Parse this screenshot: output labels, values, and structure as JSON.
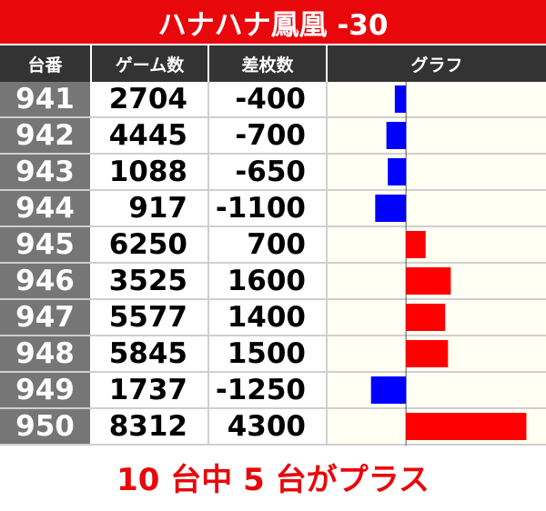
{
  "title": "ハナハナ鳳凰 -30",
  "headers": {
    "id": "台番",
    "games": "ゲーム数",
    "diff": "差枚数",
    "graph": "グラフ"
  },
  "rows": [
    {
      "id": "941",
      "games": "2704",
      "diff": "-400"
    },
    {
      "id": "942",
      "games": "4445",
      "diff": "-700"
    },
    {
      "id": "943",
      "games": "1088",
      "diff": "-650"
    },
    {
      "id": "944",
      "games": "917",
      "diff": "-1100"
    },
    {
      "id": "945",
      "games": "6250",
      "diff": "700"
    },
    {
      "id": "946",
      "games": "3525",
      "diff": "1600"
    },
    {
      "id": "947",
      "games": "5577",
      "diff": "1400"
    },
    {
      "id": "948",
      "games": "5845",
      "diff": "1500"
    },
    {
      "id": "949",
      "games": "1737",
      "diff": "-1250"
    },
    {
      "id": "950",
      "games": "8312",
      "diff": "4300"
    }
  ],
  "footer": "10 台中 5 台がプラス",
  "colors": {
    "positive": "#ff0000",
    "negative": "#0000ff",
    "title_bg": "#e8080b"
  },
  "chart_data": {
    "type": "bar",
    "orientation": "horizontal",
    "categories": [
      "941",
      "942",
      "943",
      "944",
      "945",
      "946",
      "947",
      "948",
      "949",
      "950"
    ],
    "values": [
      -400,
      -700,
      -650,
      -1100,
      700,
      1600,
      1400,
      1500,
      -1250,
      4300
    ],
    "title": "ハナハナ鳳凰 -30",
    "xlabel": "",
    "ylabel": "",
    "xlim": [
      -2800,
      5000
    ]
  }
}
